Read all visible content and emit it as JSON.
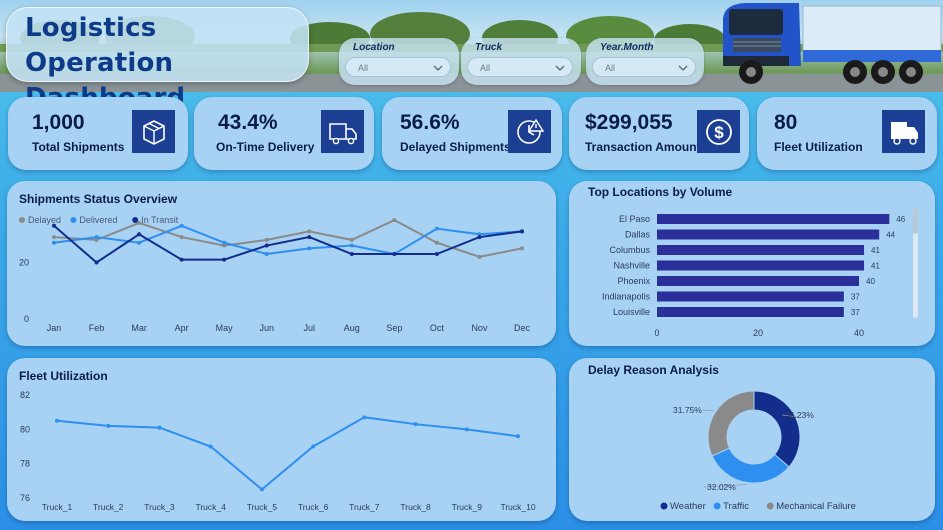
{
  "header": {
    "title_line1": "Logistics Operation",
    "title_line2": "Dashboard"
  },
  "filters": [
    {
      "label": "Location",
      "value": "All"
    },
    {
      "label": "Truck",
      "value": "All"
    },
    {
      "label": "Year.Month",
      "value": "All"
    }
  ],
  "kpis": [
    {
      "value": "1,000",
      "label": "Total Shipments",
      "icon": "box-icon"
    },
    {
      "value": "43.4%",
      "label": "On-Time Delivery",
      "icon": "delivery-truck-icon"
    },
    {
      "value": "56.6%",
      "label": "Delayed Shipments",
      "icon": "clock-alert-icon"
    },
    {
      "value": "$299,055",
      "label": "Transaction Amount",
      "icon": "dollar-coin-icon"
    },
    {
      "value": "80",
      "label": "Fleet Utilization",
      "icon": "truck-icon"
    }
  ],
  "colors": {
    "delayed": "#8a8a8a",
    "delivered": "#2e8ff0",
    "in_transit": "#122d8c",
    "bar": "#2a2f99",
    "fleet_line": "#2e8ff0",
    "weather": "#122d8c",
    "traffic": "#2e8ff0",
    "mechanical": "#8a8a8a"
  },
  "chart_data": [
    {
      "id": "shipments_status",
      "type": "line",
      "title": "Shipments Status Overview",
      "categories": [
        "Jan",
        "Feb",
        "Mar",
        "Apr",
        "May",
        "Jun",
        "Jul",
        "Aug",
        "Sep",
        "Oct",
        "Nov",
        "Dec"
      ],
      "series": [
        {
          "name": "Delayed",
          "values": [
            29,
            28,
            34,
            29,
            26,
            28,
            31,
            28,
            35,
            27,
            22,
            25
          ]
        },
        {
          "name": "Delivered",
          "values": [
            27,
            29,
            27,
            33,
            27,
            23,
            25,
            26,
            23,
            32,
            30,
            31
          ]
        },
        {
          "name": "In Transit",
          "values": [
            33,
            20,
            30,
            21,
            21,
            26,
            29,
            23,
            23,
            23,
            29,
            31
          ]
        }
      ],
      "yticks": [
        0,
        20
      ],
      "ylim": [
        0,
        40
      ],
      "legend": "top-left"
    },
    {
      "id": "top_locations",
      "type": "bar",
      "orientation": "horizontal",
      "title": "Top Locations by Volume",
      "categories": [
        "El Paso",
        "Dallas",
        "Columbus",
        "Nashville",
        "Phoenix",
        "Indianapolis",
        "Louisville"
      ],
      "values": [
        46,
        44,
        41,
        41,
        40,
        37,
        37
      ],
      "xticks": [
        0,
        20,
        40
      ],
      "xlim": [
        0,
        48
      ]
    },
    {
      "id": "fleet_utilization",
      "type": "line",
      "title": "Fleet Utilization",
      "categories": [
        "Truck_1",
        "Truck_2",
        "Truck_3",
        "Truck_4",
        "Truck_5",
        "Truck_6",
        "Truck_7",
        "Truck_8",
        "Truck_9",
        "Truck_10"
      ],
      "values": [
        80.5,
        80.2,
        80.1,
        79.0,
        76.5,
        79.0,
        80.7,
        80.3,
        80.0,
        79.6
      ],
      "yticks": [
        76,
        78,
        80,
        82
      ],
      "ylim": [
        76,
        82
      ]
    },
    {
      "id": "delay_reason",
      "type": "pie",
      "donut": true,
      "title": "Delay Reason Analysis",
      "labels": [
        "Weather",
        "Traffic",
        "Mechanical Failure"
      ],
      "values": [
        36.23,
        32.02,
        31.75
      ],
      "value_labels": [
        "36.23%",
        "32.02%",
        "31.75%"
      ],
      "legend": "bottom"
    }
  ]
}
